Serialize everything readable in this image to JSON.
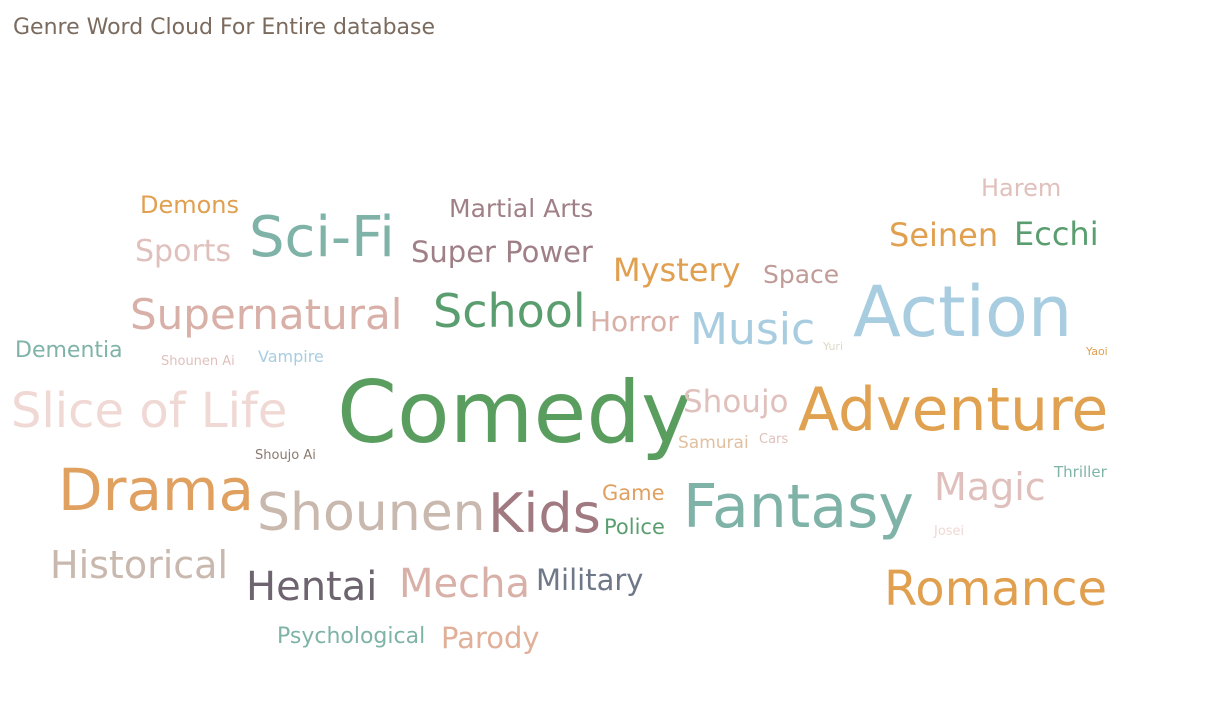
{
  "title": "Genre Word Cloud For Entire database",
  "chart_data": {
    "type": "word_cloud",
    "title": "Genre Word Cloud For Entire database",
    "words": [
      {
        "text": "Comedy",
        "color": "#5a9e5f"
      },
      {
        "text": "Action",
        "color": "#a8cde0"
      },
      {
        "text": "Adventure",
        "color": "#e0a150"
      },
      {
        "text": "Fantasy",
        "color": "#7fb3a8"
      },
      {
        "text": "Drama",
        "color": "#e0a060"
      },
      {
        "text": "Kids",
        "color": "#a07a80"
      },
      {
        "text": "Shounen",
        "color": "#c9b8ad"
      },
      {
        "text": "Romance",
        "color": "#e0a050"
      },
      {
        "text": "Sci-Fi",
        "color": "#7fb3a8"
      },
      {
        "text": "School",
        "color": "#5a9e70"
      },
      {
        "text": "Slice of Life",
        "color": "#f0d8d4"
      },
      {
        "text": "Supernatural",
        "color": "#d8b0a8"
      },
      {
        "text": "Music",
        "color": "#a8cde0"
      },
      {
        "text": "Hentai",
        "color": "#6e6470"
      },
      {
        "text": "Mecha",
        "color": "#d8b0a8"
      },
      {
        "text": "Historical",
        "color": "#c9b8ad"
      },
      {
        "text": "Magic",
        "color": "#e0c0bc"
      },
      {
        "text": "Mystery",
        "color": "#e0a050"
      },
      {
        "text": "Seinen",
        "color": "#e0a050"
      },
      {
        "text": "Ecchi",
        "color": "#5a9e70"
      },
      {
        "text": "Super Power",
        "color": "#a08088"
      },
      {
        "text": "Shoujo",
        "color": "#e0c0bc"
      },
      {
        "text": "Military",
        "color": "#6e7888"
      },
      {
        "text": "Sports",
        "color": "#e0c0bc"
      },
      {
        "text": "Martial Arts",
        "color": "#a08088"
      },
      {
        "text": "Horror",
        "color": "#d8b0a8"
      },
      {
        "text": "Parody",
        "color": "#e0b098"
      },
      {
        "text": "Space",
        "color": "#c09c98"
      },
      {
        "text": "Harem",
        "color": "#e0c0bc"
      },
      {
        "text": "Demons",
        "color": "#e0a050"
      },
      {
        "text": "Psychological",
        "color": "#7fb3a8"
      },
      {
        "text": "Dementia",
        "color": "#7fb3a8"
      },
      {
        "text": "Game",
        "color": "#e0a060"
      },
      {
        "text": "Police",
        "color": "#5a9e70"
      },
      {
        "text": "Samurai",
        "color": "#e0c0a0"
      },
      {
        "text": "Vampire",
        "color": "#a8cde0"
      },
      {
        "text": "Thriller",
        "color": "#7fb3a8"
      },
      {
        "text": "Cars",
        "color": "#e0c0bc"
      },
      {
        "text": "Shounen Ai",
        "color": "#e0c0bc"
      },
      {
        "text": "Shoujo Ai",
        "color": "#8a7a70"
      },
      {
        "text": "Josei",
        "color": "#f0d8d4"
      },
      {
        "text": "Yuri",
        "color": "#e0d8c8"
      },
      {
        "text": "Yaoi",
        "color": "#e0a050"
      }
    ]
  }
}
